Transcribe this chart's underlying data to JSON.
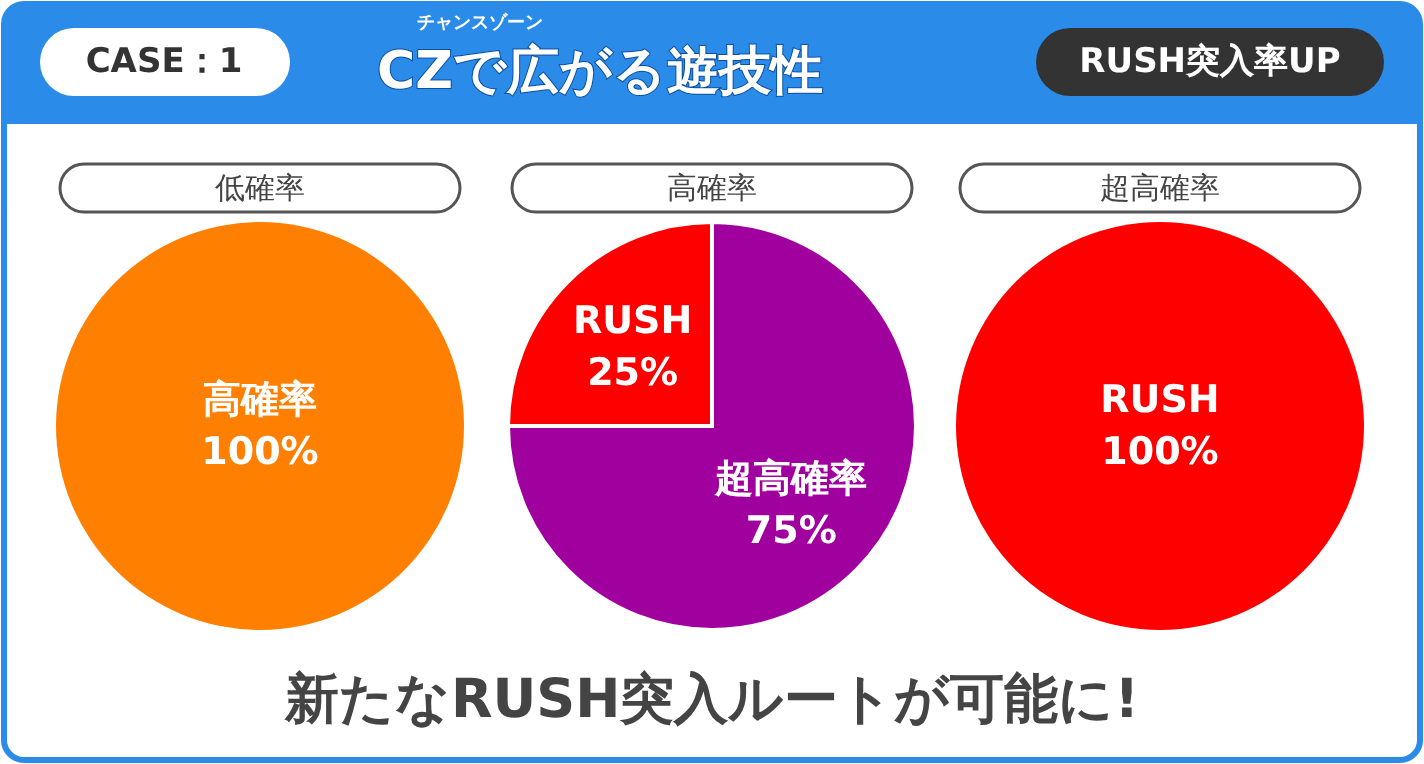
{
  "chart_data": [
    {
      "type": "other",
      "title": "CZで広がる遊技性",
      "annotations": [
        "CASE：1",
        "チャンスゾーン",
        "RUSH突入率UP"
      ]
    },
    {
      "type": "pie",
      "title": "低確率",
      "categories": [
        "高確率"
      ],
      "values": [
        100
      ],
      "value_labels": [
        "100%"
      ],
      "colors": [
        "#ff7f00"
      ]
    },
    {
      "type": "pie",
      "title": "高確率",
      "categories": [
        "RUSH",
        "超高確率"
      ],
      "values": [
        25,
        75
      ],
      "value_labels": [
        "25%",
        "75%"
      ],
      "colors": [
        "#ff0000",
        "#a0009e"
      ]
    },
    {
      "type": "pie",
      "title": "超高確率",
      "categories": [
        "RUSH"
      ],
      "values": [
        100
      ],
      "value_labels": [
        "100%"
      ],
      "colors": [
        "#ff0000"
      ]
    },
    {
      "type": "other",
      "annotations": [
        "新たなRUSH突入ルートが可能に!"
      ]
    }
  ]
}
